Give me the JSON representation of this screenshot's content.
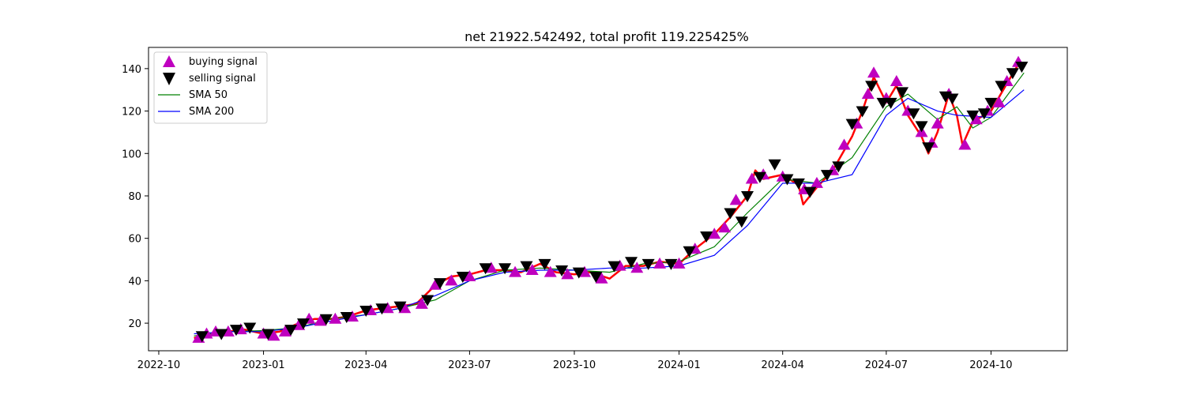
{
  "chart_data": {
    "type": "line",
    "title": "net 21922.542492, total profit 119.225425%",
    "xlabel": "",
    "ylabel": "",
    "x_tick_labels": [
      "2022-10",
      "2023-01",
      "2023-04",
      "2023-07",
      "2023-10",
      "2024-01",
      "2024-04",
      "2024-07",
      "2024-10"
    ],
    "y_ticks": [
      20,
      40,
      60,
      80,
      100,
      120,
      140
    ],
    "xlim": [
      "2022-09-22",
      "2024-12-07"
    ],
    "ylim": [
      7,
      150
    ],
    "grid": false,
    "legend_position": "top-left",
    "price_series": {
      "color": "#ff0000",
      "points": [
        [
          "2022-11-01",
          13
        ],
        [
          "2022-11-15",
          15
        ],
        [
          "2022-12-01",
          16
        ],
        [
          "2022-12-15",
          17
        ],
        [
          "2023-01-01",
          15
        ],
        [
          "2023-01-15",
          16
        ],
        [
          "2023-02-01",
          20
        ],
        [
          "2023-02-15",
          22
        ],
        [
          "2023-03-01",
          22
        ],
        [
          "2023-03-15",
          23
        ],
        [
          "2023-04-01",
          26
        ],
        [
          "2023-04-15",
          27
        ],
        [
          "2023-05-01",
          28
        ],
        [
          "2023-05-15",
          29
        ],
        [
          "2023-06-01",
          38
        ],
        [
          "2023-06-15",
          42
        ],
        [
          "2023-07-01",
          43
        ],
        [
          "2023-07-15",
          45
        ],
        [
          "2023-08-01",
          45
        ],
        [
          "2023-08-15",
          44
        ],
        [
          "2023-09-01",
          48
        ],
        [
          "2023-09-15",
          44
        ],
        [
          "2023-10-01",
          43
        ],
        [
          "2023-10-15",
          44
        ],
        [
          "2023-11-01",
          41
        ],
        [
          "2023-11-15",
          47
        ],
        [
          "2023-12-01",
          47
        ],
        [
          "2023-12-15",
          49
        ],
        [
          "2024-01-01",
          48
        ],
        [
          "2024-01-15",
          55
        ],
        [
          "2024-02-01",
          62
        ],
        [
          "2024-02-15",
          70
        ],
        [
          "2024-03-01",
          80
        ],
        [
          "2024-03-08",
          92
        ],
        [
          "2024-03-15",
          88
        ],
        [
          "2024-04-01",
          90
        ],
        [
          "2024-04-15",
          85
        ],
        [
          "2024-04-19",
          76
        ],
        [
          "2024-05-01",
          84
        ],
        [
          "2024-05-15",
          92
        ],
        [
          "2024-06-01",
          108
        ],
        [
          "2024-06-10",
          120
        ],
        [
          "2024-06-20",
          136
        ],
        [
          "2024-07-01",
          124
        ],
        [
          "2024-07-10",
          132
        ],
        [
          "2024-07-20",
          118
        ],
        [
          "2024-08-01",
          108
        ],
        [
          "2024-08-07",
          100
        ],
        [
          "2024-08-15",
          110
        ],
        [
          "2024-08-25",
          128
        ],
        [
          "2024-09-01",
          118
        ],
        [
          "2024-09-06",
          104
        ],
        [
          "2024-09-15",
          115
        ],
        [
          "2024-09-25",
          118
        ],
        [
          "2024-10-01",
          120
        ],
        [
          "2024-10-15",
          133
        ],
        [
          "2024-10-25",
          142
        ],
        [
          "2024-10-30",
          141
        ]
      ]
    },
    "series": [
      {
        "name": "SMA 50",
        "color": "#008000",
        "points": [
          [
            "2022-11-01",
            14
          ],
          [
            "2022-12-01",
            16
          ],
          [
            "2023-01-01",
            16.5
          ],
          [
            "2023-02-01",
            18
          ],
          [
            "2023-03-01",
            22
          ],
          [
            "2023-04-01",
            24
          ],
          [
            "2023-05-01",
            27
          ],
          [
            "2023-06-01",
            31
          ],
          [
            "2023-07-01",
            40
          ],
          [
            "2023-08-01",
            45
          ],
          [
            "2023-09-01",
            46
          ],
          [
            "2023-10-01",
            45
          ],
          [
            "2023-11-01",
            44
          ],
          [
            "2023-12-01",
            48
          ],
          [
            "2024-01-01",
            49
          ],
          [
            "2024-02-01",
            56
          ],
          [
            "2024-03-01",
            72
          ],
          [
            "2024-04-01",
            88
          ],
          [
            "2024-05-01",
            86
          ],
          [
            "2024-06-01",
            98
          ],
          [
            "2024-07-01",
            122
          ],
          [
            "2024-07-20",
            128
          ],
          [
            "2024-08-15",
            116
          ],
          [
            "2024-09-01",
            122
          ],
          [
            "2024-09-15",
            112
          ],
          [
            "2024-10-01",
            117
          ],
          [
            "2024-10-30",
            138
          ]
        ]
      },
      {
        "name": "SMA 200",
        "color": "#0000ff",
        "points": [
          [
            "2022-11-01",
            15
          ],
          [
            "2022-12-01",
            16
          ],
          [
            "2023-01-01",
            16
          ],
          [
            "2023-02-01",
            18
          ],
          [
            "2023-03-01",
            21
          ],
          [
            "2023-04-01",
            24
          ],
          [
            "2023-05-01",
            27
          ],
          [
            "2023-06-01",
            33
          ],
          [
            "2023-07-01",
            40
          ],
          [
            "2023-08-01",
            44
          ],
          [
            "2023-09-01",
            45
          ],
          [
            "2023-10-01",
            45
          ],
          [
            "2023-11-01",
            46
          ],
          [
            "2023-12-01",
            46
          ],
          [
            "2024-01-01",
            47
          ],
          [
            "2024-02-01",
            52
          ],
          [
            "2024-03-01",
            66
          ],
          [
            "2024-04-01",
            86
          ],
          [
            "2024-05-01",
            86
          ],
          [
            "2024-06-01",
            90
          ],
          [
            "2024-07-01",
            118
          ],
          [
            "2024-07-20",
            126
          ],
          [
            "2024-08-15",
            120
          ],
          [
            "2024-09-01",
            118
          ],
          [
            "2024-10-01",
            117
          ],
          [
            "2024-10-30",
            130
          ]
        ]
      }
    ],
    "legend": [
      {
        "label": "buying signal",
        "marker": "triangle-up",
        "color": "#bf00bf"
      },
      {
        "label": "selling signal",
        "marker": "triangle-down",
        "color": "#000000"
      },
      {
        "label": "SMA 50",
        "marker": "line",
        "color": "#008000"
      },
      {
        "label": "SMA 200",
        "marker": "line",
        "color": "#0000ff"
      }
    ],
    "buy_signals": [
      [
        "2022-11-05",
        13
      ],
      [
        "2022-11-12",
        15
      ],
      [
        "2022-11-20",
        16
      ],
      [
        "2022-12-01",
        16
      ],
      [
        "2022-12-12",
        17
      ],
      [
        "2023-01-01",
        15
      ],
      [
        "2023-01-10",
        14
      ],
      [
        "2023-01-20",
        16
      ],
      [
        "2023-02-01",
        19
      ],
      [
        "2023-02-10",
        22
      ],
      [
        "2023-02-20",
        21
      ],
      [
        "2023-03-05",
        22
      ],
      [
        "2023-03-20",
        23
      ],
      [
        "2023-04-05",
        26
      ],
      [
        "2023-04-20",
        27
      ],
      [
        "2023-05-05",
        27
      ],
      [
        "2023-05-20",
        29
      ],
      [
        "2023-06-01",
        38
      ],
      [
        "2023-06-15",
        40
      ],
      [
        "2023-07-01",
        42
      ],
      [
        "2023-07-20",
        46
      ],
      [
        "2023-08-10",
        44
      ],
      [
        "2023-08-25",
        45
      ],
      [
        "2023-09-10",
        44
      ],
      [
        "2023-09-25",
        43
      ],
      [
        "2023-10-10",
        44
      ],
      [
        "2023-10-25",
        41
      ],
      [
        "2023-11-10",
        47
      ],
      [
        "2023-11-25",
        46
      ],
      [
        "2023-12-15",
        48
      ],
      [
        "2024-01-01",
        48
      ],
      [
        "2024-01-15",
        55
      ],
      [
        "2024-02-01",
        62
      ],
      [
        "2024-02-10",
        65
      ],
      [
        "2024-02-20",
        78
      ],
      [
        "2024-03-05",
        88
      ],
      [
        "2024-03-15",
        90
      ],
      [
        "2024-04-01",
        89
      ],
      [
        "2024-04-20",
        83
      ],
      [
        "2024-05-01",
        86
      ],
      [
        "2024-05-15",
        92
      ],
      [
        "2024-05-25",
        104
      ],
      [
        "2024-06-05",
        114
      ],
      [
        "2024-06-15",
        128
      ],
      [
        "2024-06-20",
        138
      ],
      [
        "2024-07-01",
        126
      ],
      [
        "2024-07-10",
        134
      ],
      [
        "2024-07-20",
        120
      ],
      [
        "2024-08-01",
        110
      ],
      [
        "2024-08-10",
        105
      ],
      [
        "2024-08-15",
        114
      ],
      [
        "2024-08-25",
        128
      ],
      [
        "2024-09-08",
        104
      ],
      [
        "2024-09-18",
        116
      ],
      [
        "2024-09-28",
        120
      ],
      [
        "2024-10-08",
        124
      ],
      [
        "2024-10-15",
        134
      ],
      [
        "2024-10-25",
        143
      ]
    ],
    "sell_signals": [
      [
        "2022-11-08",
        14
      ],
      [
        "2022-11-25",
        15
      ],
      [
        "2022-12-08",
        17
      ],
      [
        "2022-12-20",
        18
      ],
      [
        "2023-01-05",
        15
      ],
      [
        "2023-01-25",
        17
      ],
      [
        "2023-02-05",
        20
      ],
      [
        "2023-02-25",
        22
      ],
      [
        "2023-03-15",
        23
      ],
      [
        "2023-04-01",
        26
      ],
      [
        "2023-04-15",
        27
      ],
      [
        "2023-05-01",
        28
      ],
      [
        "2023-05-25",
        31
      ],
      [
        "2023-06-05",
        39
      ],
      [
        "2023-06-25",
        42
      ],
      [
        "2023-07-15",
        46
      ],
      [
        "2023-08-01",
        46
      ],
      [
        "2023-08-20",
        47
      ],
      [
        "2023-09-05",
        48
      ],
      [
        "2023-09-20",
        45
      ],
      [
        "2023-10-05",
        44
      ],
      [
        "2023-10-20",
        42
      ],
      [
        "2023-11-05",
        47
      ],
      [
        "2023-11-20",
        49
      ],
      [
        "2023-12-05",
        48
      ],
      [
        "2023-12-25",
        48
      ],
      [
        "2024-01-10",
        54
      ],
      [
        "2024-01-25",
        61
      ],
      [
        "2024-02-15",
        72
      ],
      [
        "2024-02-25",
        68
      ],
      [
        "2024-03-01",
        80
      ],
      [
        "2024-03-12",
        89
      ],
      [
        "2024-03-25",
        95
      ],
      [
        "2024-04-05",
        88
      ],
      [
        "2024-04-15",
        86
      ],
      [
        "2024-04-25",
        82
      ],
      [
        "2024-05-10",
        90
      ],
      [
        "2024-05-20",
        94
      ],
      [
        "2024-06-01",
        114
      ],
      [
        "2024-06-10",
        120
      ],
      [
        "2024-06-18",
        132
      ],
      [
        "2024-06-28",
        124
      ],
      [
        "2024-07-05",
        124
      ],
      [
        "2024-07-15",
        129
      ],
      [
        "2024-07-25",
        119
      ],
      [
        "2024-08-01",
        113
      ],
      [
        "2024-08-07",
        103
      ],
      [
        "2024-08-22",
        127
      ],
      [
        "2024-08-28",
        126
      ],
      [
        "2024-09-15",
        118
      ],
      [
        "2024-09-25",
        119
      ],
      [
        "2024-10-01",
        124
      ],
      [
        "2024-10-10",
        132
      ],
      [
        "2024-10-20",
        138
      ],
      [
        "2024-10-28",
        141
      ]
    ]
  }
}
